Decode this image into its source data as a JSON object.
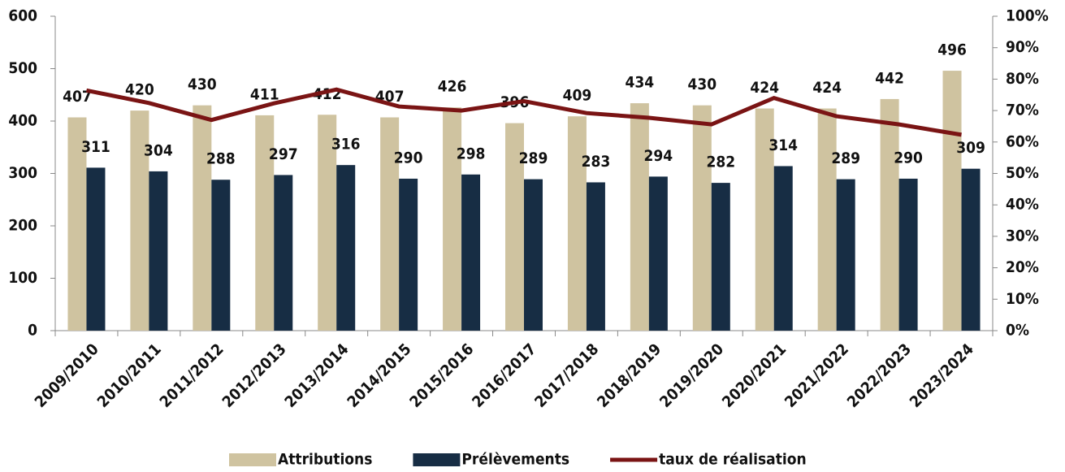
{
  "chart_data": {
    "type": "bar-line",
    "categories": [
      "2009/2010",
      "2010/2011",
      "2011/2012",
      "2012/2013",
      "2013/2014",
      "2014/2015",
      "2015/2016",
      "2016/2017",
      "2017/2018",
      "2018/2019",
      "2019/2020",
      "2020/2021",
      "2021/2022",
      "2022/2023",
      "2023/2024"
    ],
    "series": [
      {
        "name": "Attributions",
        "color": "#cfc3a0",
        "type": "bar",
        "values": [
          407,
          420,
          430,
          411,
          412,
          407,
          426,
          396,
          409,
          434,
          430,
          424,
          424,
          442,
          496
        ]
      },
      {
        "name": "Prélèvements",
        "color": "#172d44",
        "type": "bar",
        "values": [
          311,
          304,
          288,
          297,
          316,
          290,
          298,
          289,
          283,
          294,
          282,
          314,
          289,
          290,
          309
        ]
      },
      {
        "name": "taux de réalisation",
        "color": "#7a1414",
        "type": "line",
        "axis": "y2",
        "values": [
          76.4,
          72.4,
          67.0,
          72.3,
          76.7,
          71.3,
          70.0,
          73.0,
          69.2,
          67.7,
          65.6,
          74.0,
          68.2,
          65.6,
          62.3
        ]
      }
    ],
    "ylim": [
      0,
      600
    ],
    "yticks": [
      0,
      100,
      200,
      300,
      400,
      500,
      600
    ],
    "y2lim": [
      0,
      100
    ],
    "y2ticks": [
      {
        "value": 0,
        "label": "0%"
      },
      {
        "value": 10,
        "label": "10%"
      },
      {
        "value": 20,
        "label": "20%"
      },
      {
        "value": 30,
        "label": "30%"
      },
      {
        "value": 40,
        "label": "40%"
      },
      {
        "value": 50,
        "label": "50%"
      },
      {
        "value": 60,
        "label": "60%"
      },
      {
        "value": 70,
        "label": "70%"
      },
      {
        "value": 80,
        "label": "80%"
      },
      {
        "value": 90,
        "label": "90%"
      },
      {
        "value": 100,
        "label": "100%"
      }
    ],
    "legend": "bottom"
  }
}
